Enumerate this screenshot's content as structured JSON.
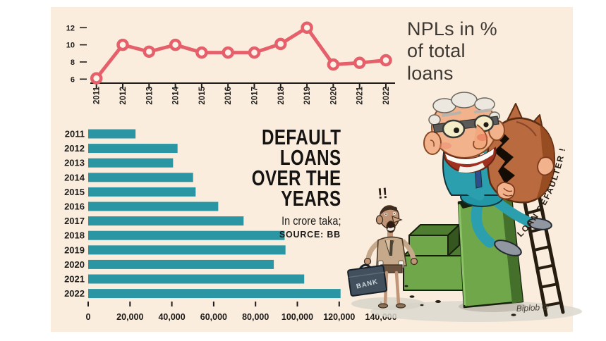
{
  "page": {
    "background": "#ffffff",
    "panel_color": "#fbeddd"
  },
  "line_chart_title": {
    "lines": [
      "NPLs in %",
      "of total",
      "loans"
    ]
  },
  "headline": {
    "lines": [
      "DEFAULT",
      "LOANS",
      "OVER THE",
      "YEARS"
    ],
    "subtitle": "In crore taka;",
    "source": "SOURCE: BB"
  },
  "cartoon": {
    "loan_defaulter_label": "LOAN DEFAULTER !",
    "briefcase_label": "BANK",
    "exclamation": "!!",
    "signature": "Biplob ©"
  },
  "chart_data": [
    {
      "type": "line",
      "title": "NPLs in % of total loans",
      "x": [
        "2011",
        "2012",
        "2013",
        "2014",
        "2015",
        "2016",
        "2017",
        "2018",
        "2019",
        "2020",
        "2021",
        "2022"
      ],
      "values": [
        6.1,
        10.0,
        9.2,
        10.0,
        9.1,
        9.1,
        9.1,
        10.1,
        12.0,
        7.7,
        7.9,
        8.2
      ],
      "yticks": [
        12,
        10,
        8,
        6
      ],
      "ylim": [
        5,
        13
      ],
      "grid": false,
      "line_color": "#e5606b",
      "marker_fill": "#fcf3e8",
      "marker": "open-circle"
    },
    {
      "type": "bar",
      "orientation": "horizontal",
      "title": "DEFAULT LOANS OVER THE YEARS",
      "unit": "In crore taka",
      "source": "SOURCE: BB",
      "categories": [
        "2011",
        "2012",
        "2013",
        "2014",
        "2015",
        "2016",
        "2017",
        "2018",
        "2019",
        "2020",
        "2021",
        "2022"
      ],
      "values": [
        22644,
        42726,
        40583,
        50156,
        51371,
        62172,
        74303,
        93911,
        94331,
        88734,
        103274,
        120656
      ],
      "xticks": [
        0,
        20000,
        40000,
        60000,
        80000,
        100000,
        120000,
        140000
      ],
      "xtick_labels": [
        "0",
        "20,000",
        "40,000",
        "60,000",
        "80,000",
        "100,000",
        "120,000",
        "140,000"
      ],
      "xlim": [
        0,
        145000
      ],
      "grid": false,
      "bar_color": "#2b96a3"
    }
  ]
}
